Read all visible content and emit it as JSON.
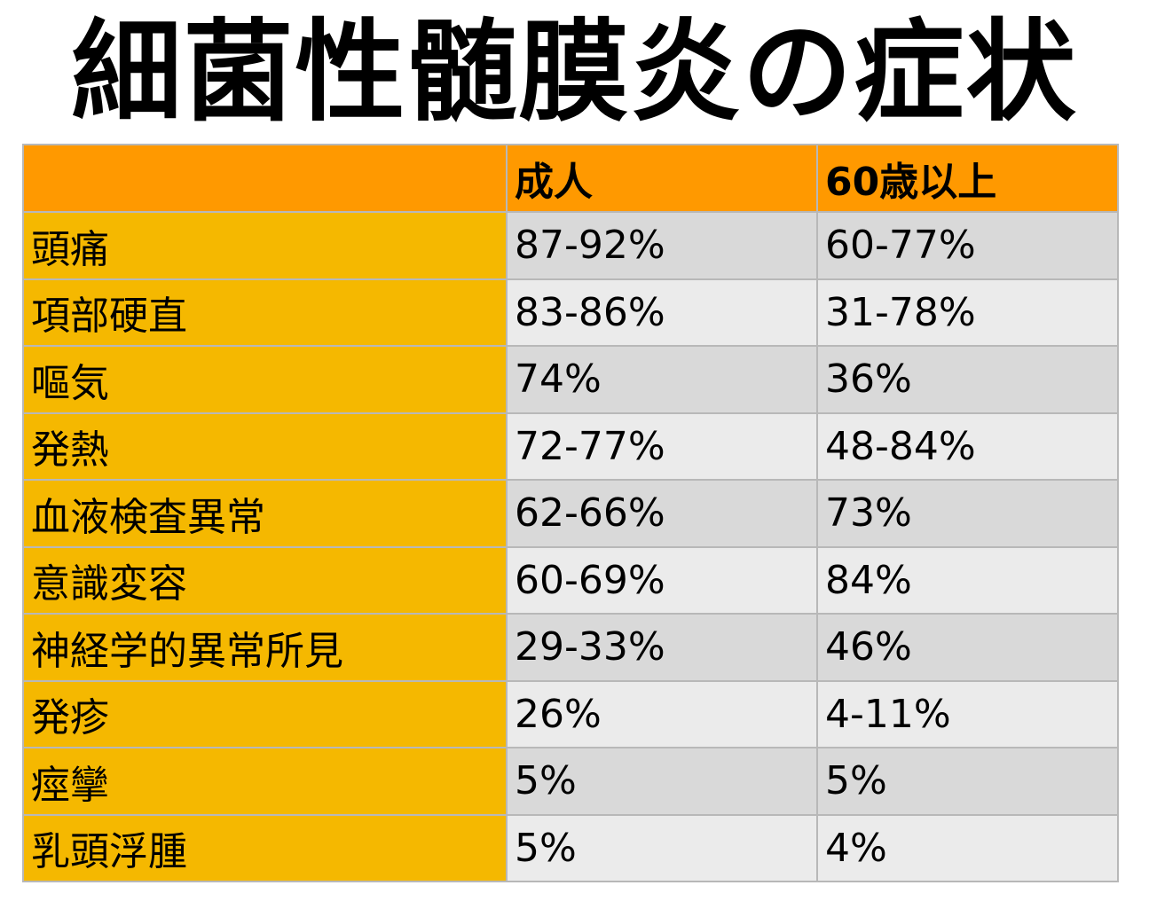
{
  "title": "細菌性髄膜炎の症状",
  "table": {
    "header": [
      "成人",
      "60歳以上"
    ],
    "rows": [
      [
        "頭痛",
        "87-92%",
        "60-77%"
      ],
      [
        "項部硬直",
        "83-86%",
        "31-78%"
      ],
      [
        "嘔気",
        "74%",
        "36%"
      ],
      [
        "発熱",
        "72-77%",
        "48-84%"
      ],
      [
        "血液検査異常",
        "62-66%",
        "73%"
      ],
      [
        "意識変容",
        "60-69%",
        "84%"
      ],
      [
        "神経学的異常所見",
        "29-33%",
        "46%"
      ],
      [
        "発疹",
        "26%",
        "4-11%"
      ],
      [
        "痙攣",
        "5%",
        "5%"
      ],
      [
        "乳頭浮腫",
        "5%",
        "4%"
      ]
    ]
  }
}
